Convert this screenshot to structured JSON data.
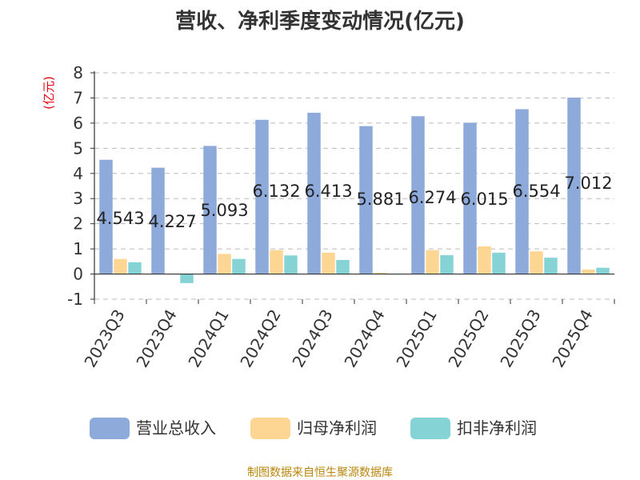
{
  "chart_data": {
    "type": "bar",
    "title": "营收、净利季度变动情况(亿元)",
    "ylabel": "(亿元)",
    "ylim": [
      -1,
      8
    ],
    "yticks": [
      -1,
      0,
      1,
      2,
      3,
      4,
      5,
      6,
      7,
      8
    ],
    "grid": true,
    "legend_position": "bottom",
    "categories": [
      "2023Q3",
      "2023Q4",
      "2024Q1",
      "2024Q2",
      "2024Q3",
      "2024Q4",
      "2025Q1",
      "2025Q2",
      "2025Q3",
      "2025Q4"
    ],
    "series": [
      {
        "name": "营业总收入",
        "color": "#8eaadb",
        "values": [
          4.543,
          4.227,
          5.093,
          6.132,
          6.413,
          5.881,
          6.274,
          6.015,
          6.554,
          7.012
        ],
        "data_labels": [
          "4.543",
          "4.227",
          "5.093",
          "6.132",
          "6.413",
          "5.881",
          "6.274",
          "6.015",
          "6.554",
          "7.012"
        ]
      },
      {
        "name": "归母净利润",
        "color": "#fdd694",
        "values": [
          0.6,
          0.02,
          0.8,
          0.95,
          0.85,
          0.05,
          0.95,
          1.1,
          0.9,
          0.18
        ]
      },
      {
        "name": "扣非净利润",
        "color": "#86d3d6",
        "values": [
          0.47,
          -0.36,
          0.6,
          0.74,
          0.56,
          0.0,
          0.75,
          0.85,
          0.65,
          0.25
        ]
      }
    ],
    "source": "制图数据来自恒生聚源数据库"
  }
}
